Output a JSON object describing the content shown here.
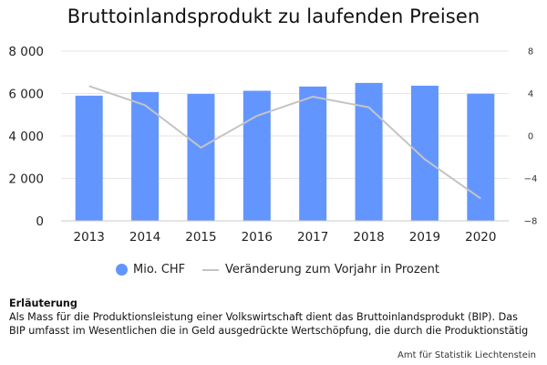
{
  "chart_data": {
    "type": "bar+line",
    "title": "Bruttoinlandsprodukt zu laufenden Preisen",
    "categories": [
      "2013",
      "2014",
      "2015",
      "2016",
      "2017",
      "2018",
      "2019",
      "2020"
    ],
    "series": [
      {
        "name": "Mio. CHF",
        "type": "bar",
        "axis": "left",
        "color": "#6395ff",
        "values": [
          5900,
          6070,
          5980,
          6130,
          6330,
          6500,
          6370,
          5990
        ]
      },
      {
        "name": "Veränderung zum Vorjahr in Prozent",
        "type": "line",
        "axis": "right",
        "color": "#c4c4c4",
        "values": [
          4.7,
          2.9,
          -1.1,
          1.9,
          3.7,
          2.7,
          -2.2,
          -5.9
        ]
      }
    ],
    "left_axis": {
      "ylim": [
        0,
        8000
      ],
      "ticks": [
        0,
        2000,
        4000,
        6000,
        8000
      ],
      "tick_labels": [
        "0",
        "2 000",
        "4 000",
        "6 000",
        "8 000"
      ]
    },
    "right_axis": {
      "ylim": [
        -8,
        8
      ],
      "ticks": [
        -8,
        -4,
        0,
        4,
        8
      ],
      "tick_labels": [
        "−8",
        "−4",
        "0",
        "4",
        "8"
      ]
    },
    "grid": true,
    "legend_position": "bottom"
  },
  "explanation": {
    "heading": "Erläuterung",
    "line1": "Als Mass für die Produktionsleistung einer Volkswirtschaft dient das Bruttoinlandsprodukt (BIP). Das",
    "line2": "BIP umfasst im Wesentlichen die in Geld ausgedrückte Wertschöpfung, die durch die Produktionstätig"
  },
  "source": "Amt für Statistik Liechtenstein"
}
